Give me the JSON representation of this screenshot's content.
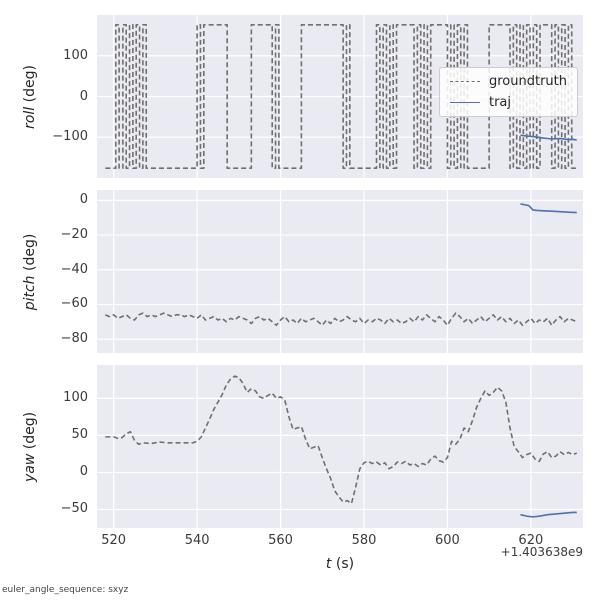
{
  "figure": {
    "xlabel_main": "t",
    "xlabel_unit": " (s)",
    "offset_text": "+1.403638e9",
    "footer_note": "euler_angle_sequence: sxyz"
  },
  "colors": {
    "figure_bg": "#ffffff",
    "axes_bg": "#EAEAF2",
    "grid": "#ffffff",
    "groundtruth": "#6f6f6f",
    "traj": "#4C72B0",
    "text": "#262626"
  },
  "legend": {
    "entries": [
      {
        "label": "groundtruth",
        "style": "dashed"
      },
      {
        "label": "traj",
        "style": "solid"
      }
    ],
    "position": "upper right"
  },
  "chart_data": [
    {
      "type": "line",
      "ylabel_main": "roll",
      "ylabel_unit": " (deg)",
      "xlim": [
        516,
        632.5
      ],
      "ylim": [
        -200,
        200
      ],
      "xticks": [
        520,
        540,
        560,
        580,
        600,
        620
      ],
      "yticks": [
        -100,
        0,
        100
      ],
      "grid": true,
      "series": [
        {
          "name": "groundtruth",
          "style": "dashed",
          "color_key": "groundtruth",
          "square_wave": {
            "t_start": 518,
            "t_end": 631,
            "start_value": -176,
            "high": 176,
            "low": -176,
            "transitions": [
              520.5,
              521.3,
              522.2,
              523.0,
              523.8,
              524.6,
              525.4,
              526.2,
              527.0,
              527.8,
              540.0,
              540.8,
              541.6,
              547.2,
              553.0,
              558.0,
              558.8,
              559.6,
              565.0,
              575.0,
              575.8,
              576.6,
              583.0,
              583.8,
              584.6,
              585.4,
              586.2,
              587.0,
              587.8,
              592.0,
              592.8,
              593.6,
              594.4,
              595.2,
              596.0,
              600.0,
              600.8,
              601.6,
              602.4,
              603.2,
              604.0,
              604.8,
              610.0,
              615.0,
              615.8,
              616.6,
              617.4,
              618.2,
              619.0,
              619.8,
              620.6,
              621.4,
              622.2,
              625.0,
              625.8,
              626.6,
              627.4,
              628.2,
              629.0,
              629.8
            ]
          }
        },
        {
          "name": "traj",
          "style": "solid",
          "color_key": "traj",
          "x": [
            617.5,
            619,
            621,
            623,
            625,
            627,
            629,
            630,
            631
          ],
          "y": [
            -95,
            -97,
            -99,
            -102,
            -104,
            -103,
            -106,
            -105,
            -107
          ]
        }
      ]
    },
    {
      "type": "line",
      "ylabel_main": "pitch",
      "ylabel_unit": " (deg)",
      "xlim": [
        516,
        632.5
      ],
      "ylim": [
        -88,
        6
      ],
      "xticks": [
        520,
        540,
        560,
        580,
        600,
        620
      ],
      "yticks": [
        0,
        -20,
        -40,
        -60,
        -80
      ],
      "grid": true,
      "series": [
        {
          "name": "groundtruth",
          "style": "dashed",
          "color_key": "groundtruth",
          "x_start": 518,
          "x_step": 1,
          "y": [
            -66,
            -67,
            -66,
            -68,
            -67,
            -66,
            -68,
            -69,
            -66,
            -65,
            -67,
            -66,
            -67,
            -66,
            -65,
            -66,
            -67,
            -66,
            -66,
            -67,
            -66,
            -67,
            -68,
            -66,
            -69,
            -68,
            -67,
            -69,
            -68,
            -70,
            -68,
            -69,
            -67,
            -68,
            -69,
            -71,
            -68,
            -67,
            -69,
            -68,
            -70,
            -72,
            -69,
            -67,
            -70,
            -69,
            -71,
            -68,
            -70,
            -69,
            -68,
            -70,
            -72,
            -69,
            -71,
            -68,
            -70,
            -69,
            -67,
            -69,
            -70,
            -68,
            -71,
            -69,
            -70,
            -68,
            -69,
            -71,
            -68,
            -70,
            -69,
            -71,
            -70,
            -68,
            -70,
            -67,
            -69,
            -66,
            -68,
            -70,
            -67,
            -69,
            -72,
            -68,
            -65,
            -67,
            -70,
            -68,
            -71,
            -69,
            -67,
            -70,
            -68,
            -66,
            -69,
            -67,
            -70,
            -68,
            -71,
            -69,
            -72,
            -70,
            -68,
            -71,
            -69,
            -70,
            -68,
            -72,
            -69,
            -67,
            -70,
            -68,
            -69,
            -70
          ]
        },
        {
          "name": "traj",
          "style": "solid",
          "color_key": "traj",
          "x": [
            617.5,
            618.5,
            619.5,
            620.5,
            621.5,
            623,
            625,
            627,
            629,
            631
          ],
          "y": [
            -2,
            -2.5,
            -3,
            -5.5,
            -5.8,
            -6,
            -6.2,
            -6.5,
            -6.8,
            -7
          ]
        }
      ]
    },
    {
      "type": "line",
      "ylabel_main": "yaw",
      "ylabel_unit": " (deg)",
      "xlim": [
        516,
        632.5
      ],
      "ylim": [
        -75,
        145
      ],
      "xticks": [
        520,
        540,
        560,
        580,
        600,
        620
      ],
      "yticks": [
        -50,
        0,
        50,
        100
      ],
      "grid": true,
      "series": [
        {
          "name": "groundtruth",
          "style": "dashed",
          "color_key": "groundtruth",
          "x": [
            518,
            520,
            521,
            522,
            523,
            524,
            525,
            526,
            527,
            529,
            531,
            533,
            535,
            537,
            539,
            540,
            541,
            542,
            543,
            544,
            545,
            546,
            547,
            548,
            549,
            550,
            551,
            552,
            553,
            554,
            555,
            556,
            557,
            558,
            559,
            560,
            561,
            562,
            563,
            564,
            565,
            566,
            567,
            568,
            569,
            570,
            571,
            572,
            573,
            574,
            575,
            576,
            577,
            578,
            579,
            580,
            581,
            582,
            583,
            584,
            585,
            586,
            587,
            588,
            589,
            590,
            591,
            592,
            593,
            594,
            595,
            596,
            597,
            598,
            599,
            600,
            601,
            602,
            603,
            604,
            605,
            606,
            607,
            608,
            609,
            610,
            611,
            612,
            613,
            614,
            615,
            616,
            617,
            618,
            619,
            620,
            621,
            622,
            623,
            624,
            625,
            626,
            627,
            628,
            629,
            630,
            631
          ],
          "y": [
            48,
            48,
            46,
            47,
            52,
            55,
            43,
            38,
            40,
            39,
            41,
            40,
            40,
            40,
            40,
            42,
            48,
            60,
            72,
            85,
            95,
            105,
            118,
            126,
            130,
            128,
            120,
            108,
            113,
            110,
            102,
            100,
            104,
            107,
            100,
            102,
            98,
            75,
            58,
            60,
            62,
            45,
            32,
            34,
            36,
            20,
            5,
            -8,
            -25,
            -33,
            -40,
            -38,
            -42,
            -20,
            5,
            13,
            15,
            12,
            14,
            10,
            13,
            5,
            8,
            14,
            12,
            15,
            10,
            12,
            8,
            12,
            10,
            18,
            22,
            16,
            14,
            20,
            42,
            38,
            45,
            60,
            55,
            70,
            88,
            100,
            110,
            104,
            108,
            115,
            110,
            95,
            60,
            35,
            28,
            20,
            24,
            26,
            18,
            15,
            25,
            28,
            20,
            22,
            28,
            24,
            27,
            24,
            26
          ]
        },
        {
          "name": "traj",
          "style": "solid",
          "color_key": "traj",
          "x": [
            617.5,
            619,
            620.5,
            622,
            624,
            626,
            628,
            630,
            631
          ],
          "y": [
            -57,
            -59,
            -60,
            -59,
            -57,
            -56,
            -55,
            -54,
            -54
          ]
        }
      ]
    }
  ]
}
